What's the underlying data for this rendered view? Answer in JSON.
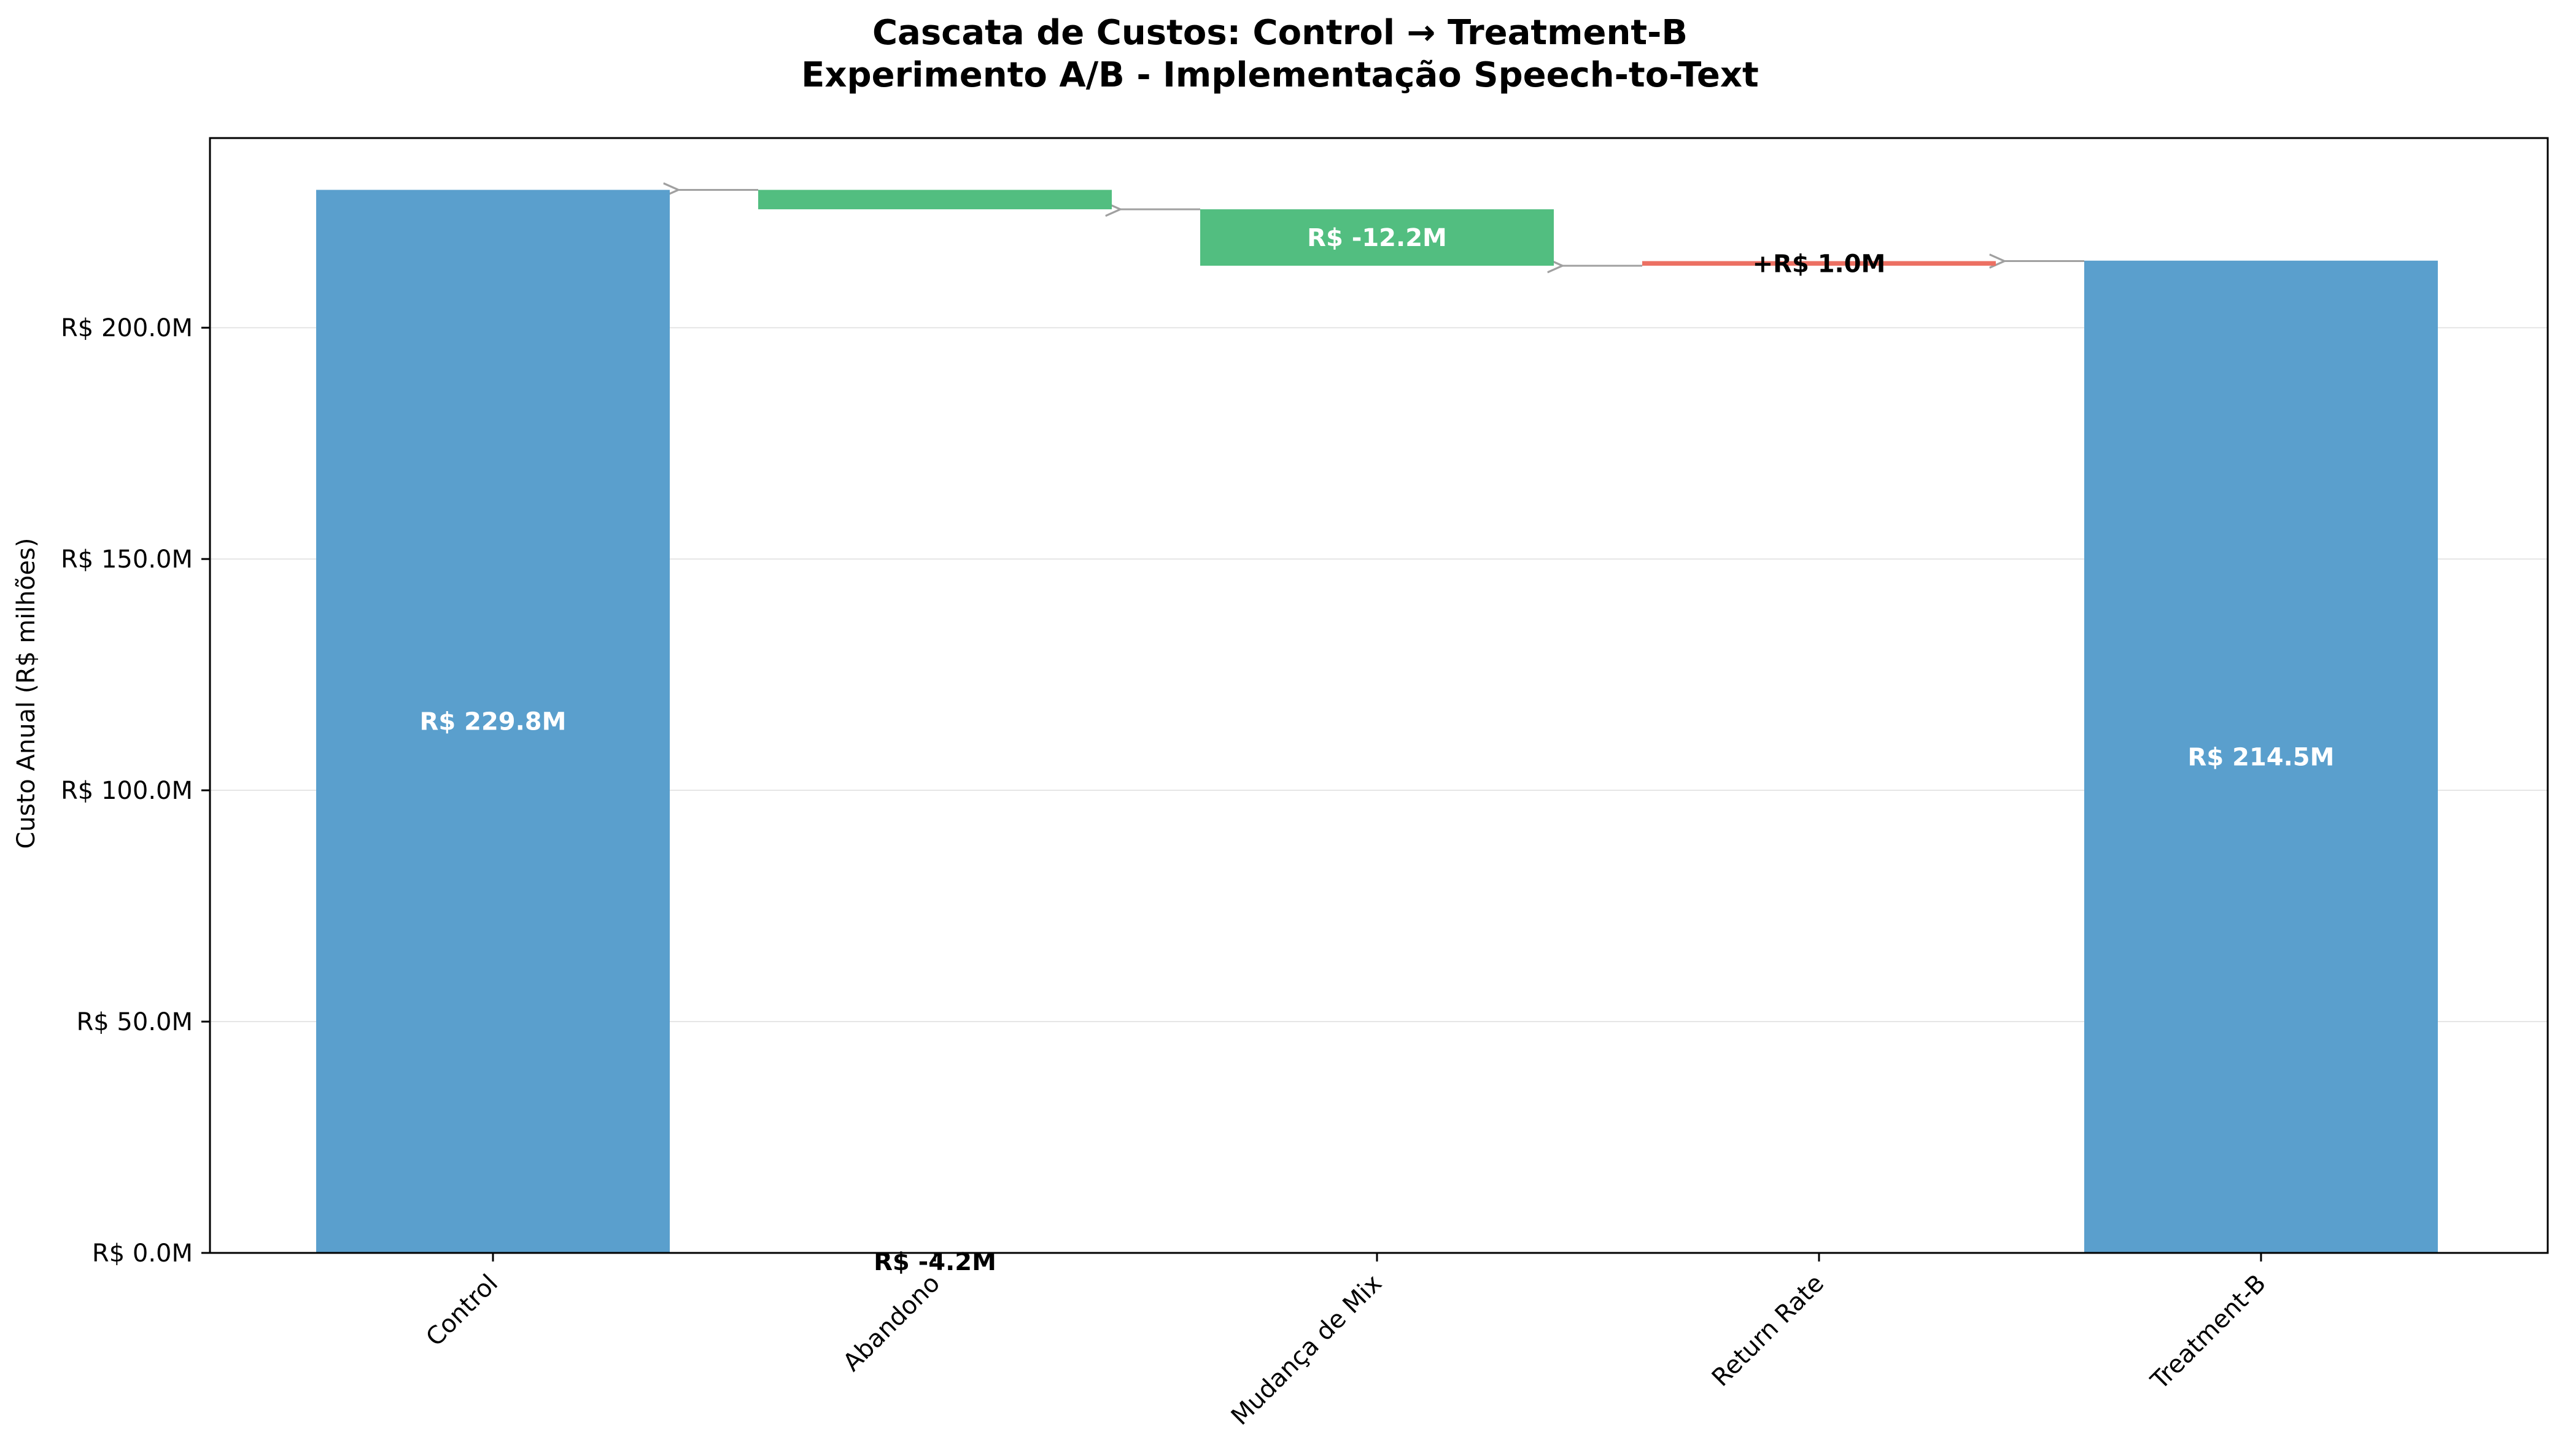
{
  "chart_data": {
    "type": "bar",
    "subtype": "waterfall",
    "title": "Cascata de Custos: Control → Treatment-B",
    "subtitle": "Experimento A/B - Implementação Speech-to-Text",
    "xlabel": "",
    "ylabel": "Custo Anual (R$ milhões)",
    "ylim": [
      0,
      241
    ],
    "yticks": [
      0,
      50,
      100,
      150,
      200
    ],
    "ytick_labels": [
      "R$ 0.0M",
      "R$ 50.0M",
      "R$ 100.0M",
      "R$ 150.0M",
      "R$ 200.0M"
    ],
    "grid": "horizontal",
    "categories": [
      "Control",
      "Abandono",
      "Mudança de Mix",
      "Return Rate",
      "Treatment-B"
    ],
    "bars": [
      {
        "category": "Control",
        "kind": "total",
        "start": 0,
        "end": 229.8,
        "label": "R$ 229.8M",
        "label_position": "inside-middle"
      },
      {
        "category": "Abandono",
        "kind": "decrease",
        "start": 229.8,
        "end": 225.6,
        "label": "R$ -4.2M",
        "label_position": "near-axis"
      },
      {
        "category": "Mudança de Mix",
        "kind": "decrease",
        "start": 225.6,
        "end": 213.4,
        "label": "R$ -12.2M",
        "label_position": "inside-middle"
      },
      {
        "category": "Return Rate",
        "kind": "increase",
        "start": 213.4,
        "end": 214.4,
        "label": "+R$ 1.0M",
        "label_position": "inside-middle"
      },
      {
        "category": "Treatment-B",
        "kind": "total",
        "start": 0,
        "end": 214.5,
        "label": "R$ 214.5M",
        "label_position": "inside-middle"
      }
    ],
    "connectors": "arrows between consecutive bars",
    "colors": {
      "total": "#5a9fcd",
      "decrease": "#52be80",
      "increase": "#ec7063",
      "connector": "#a0a0a0",
      "grid": "#e6e6e6"
    }
  }
}
